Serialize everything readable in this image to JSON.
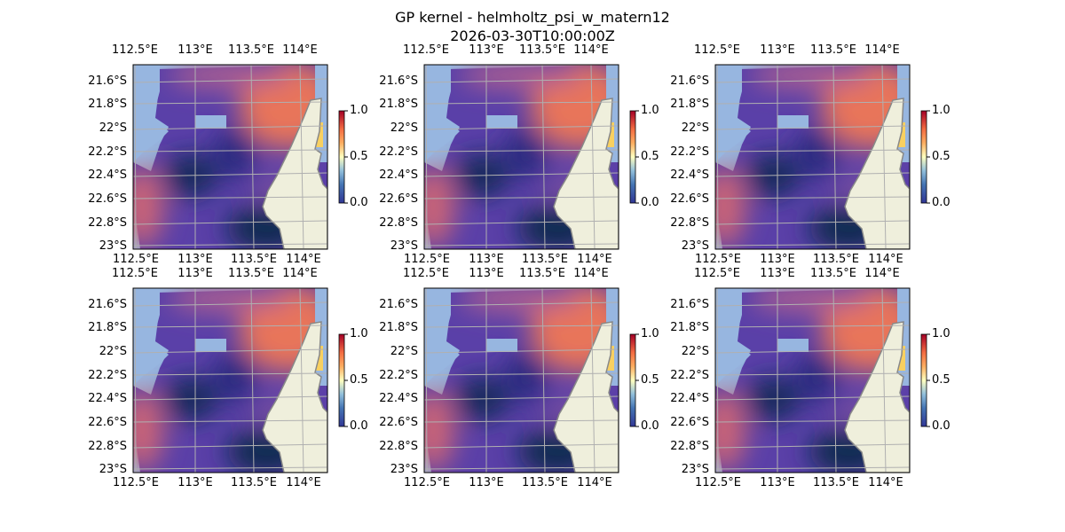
{
  "figure": {
    "title": "GP kernel - helmholtz_psi_w_matern12",
    "subtitle": "2026-03-30T10:00:00Z"
  },
  "map": {
    "lon_ticks": [
      "112.5°E",
      "113°E",
      "113.5°E",
      "114°E"
    ],
    "lat_ticks": [
      "21.6°S",
      "21.8°S",
      "22°S",
      "22.2°S",
      "22.4°S",
      "22.6°S",
      "22.8°S",
      "23°S"
    ],
    "colorbar_ticks": [
      "0.0",
      "0.5",
      "1.0"
    ],
    "colormap": "RdYlBu_r",
    "ocean_color": "#97b6e0",
    "land_color": "#efefdc",
    "gridlines": true,
    "vector_overlay": "white quiver arrows"
  },
  "panels": [
    {
      "id": 1
    },
    {
      "id": 2
    },
    {
      "id": 3
    },
    {
      "id": 4
    },
    {
      "id": 5
    },
    {
      "id": 6
    }
  ]
}
